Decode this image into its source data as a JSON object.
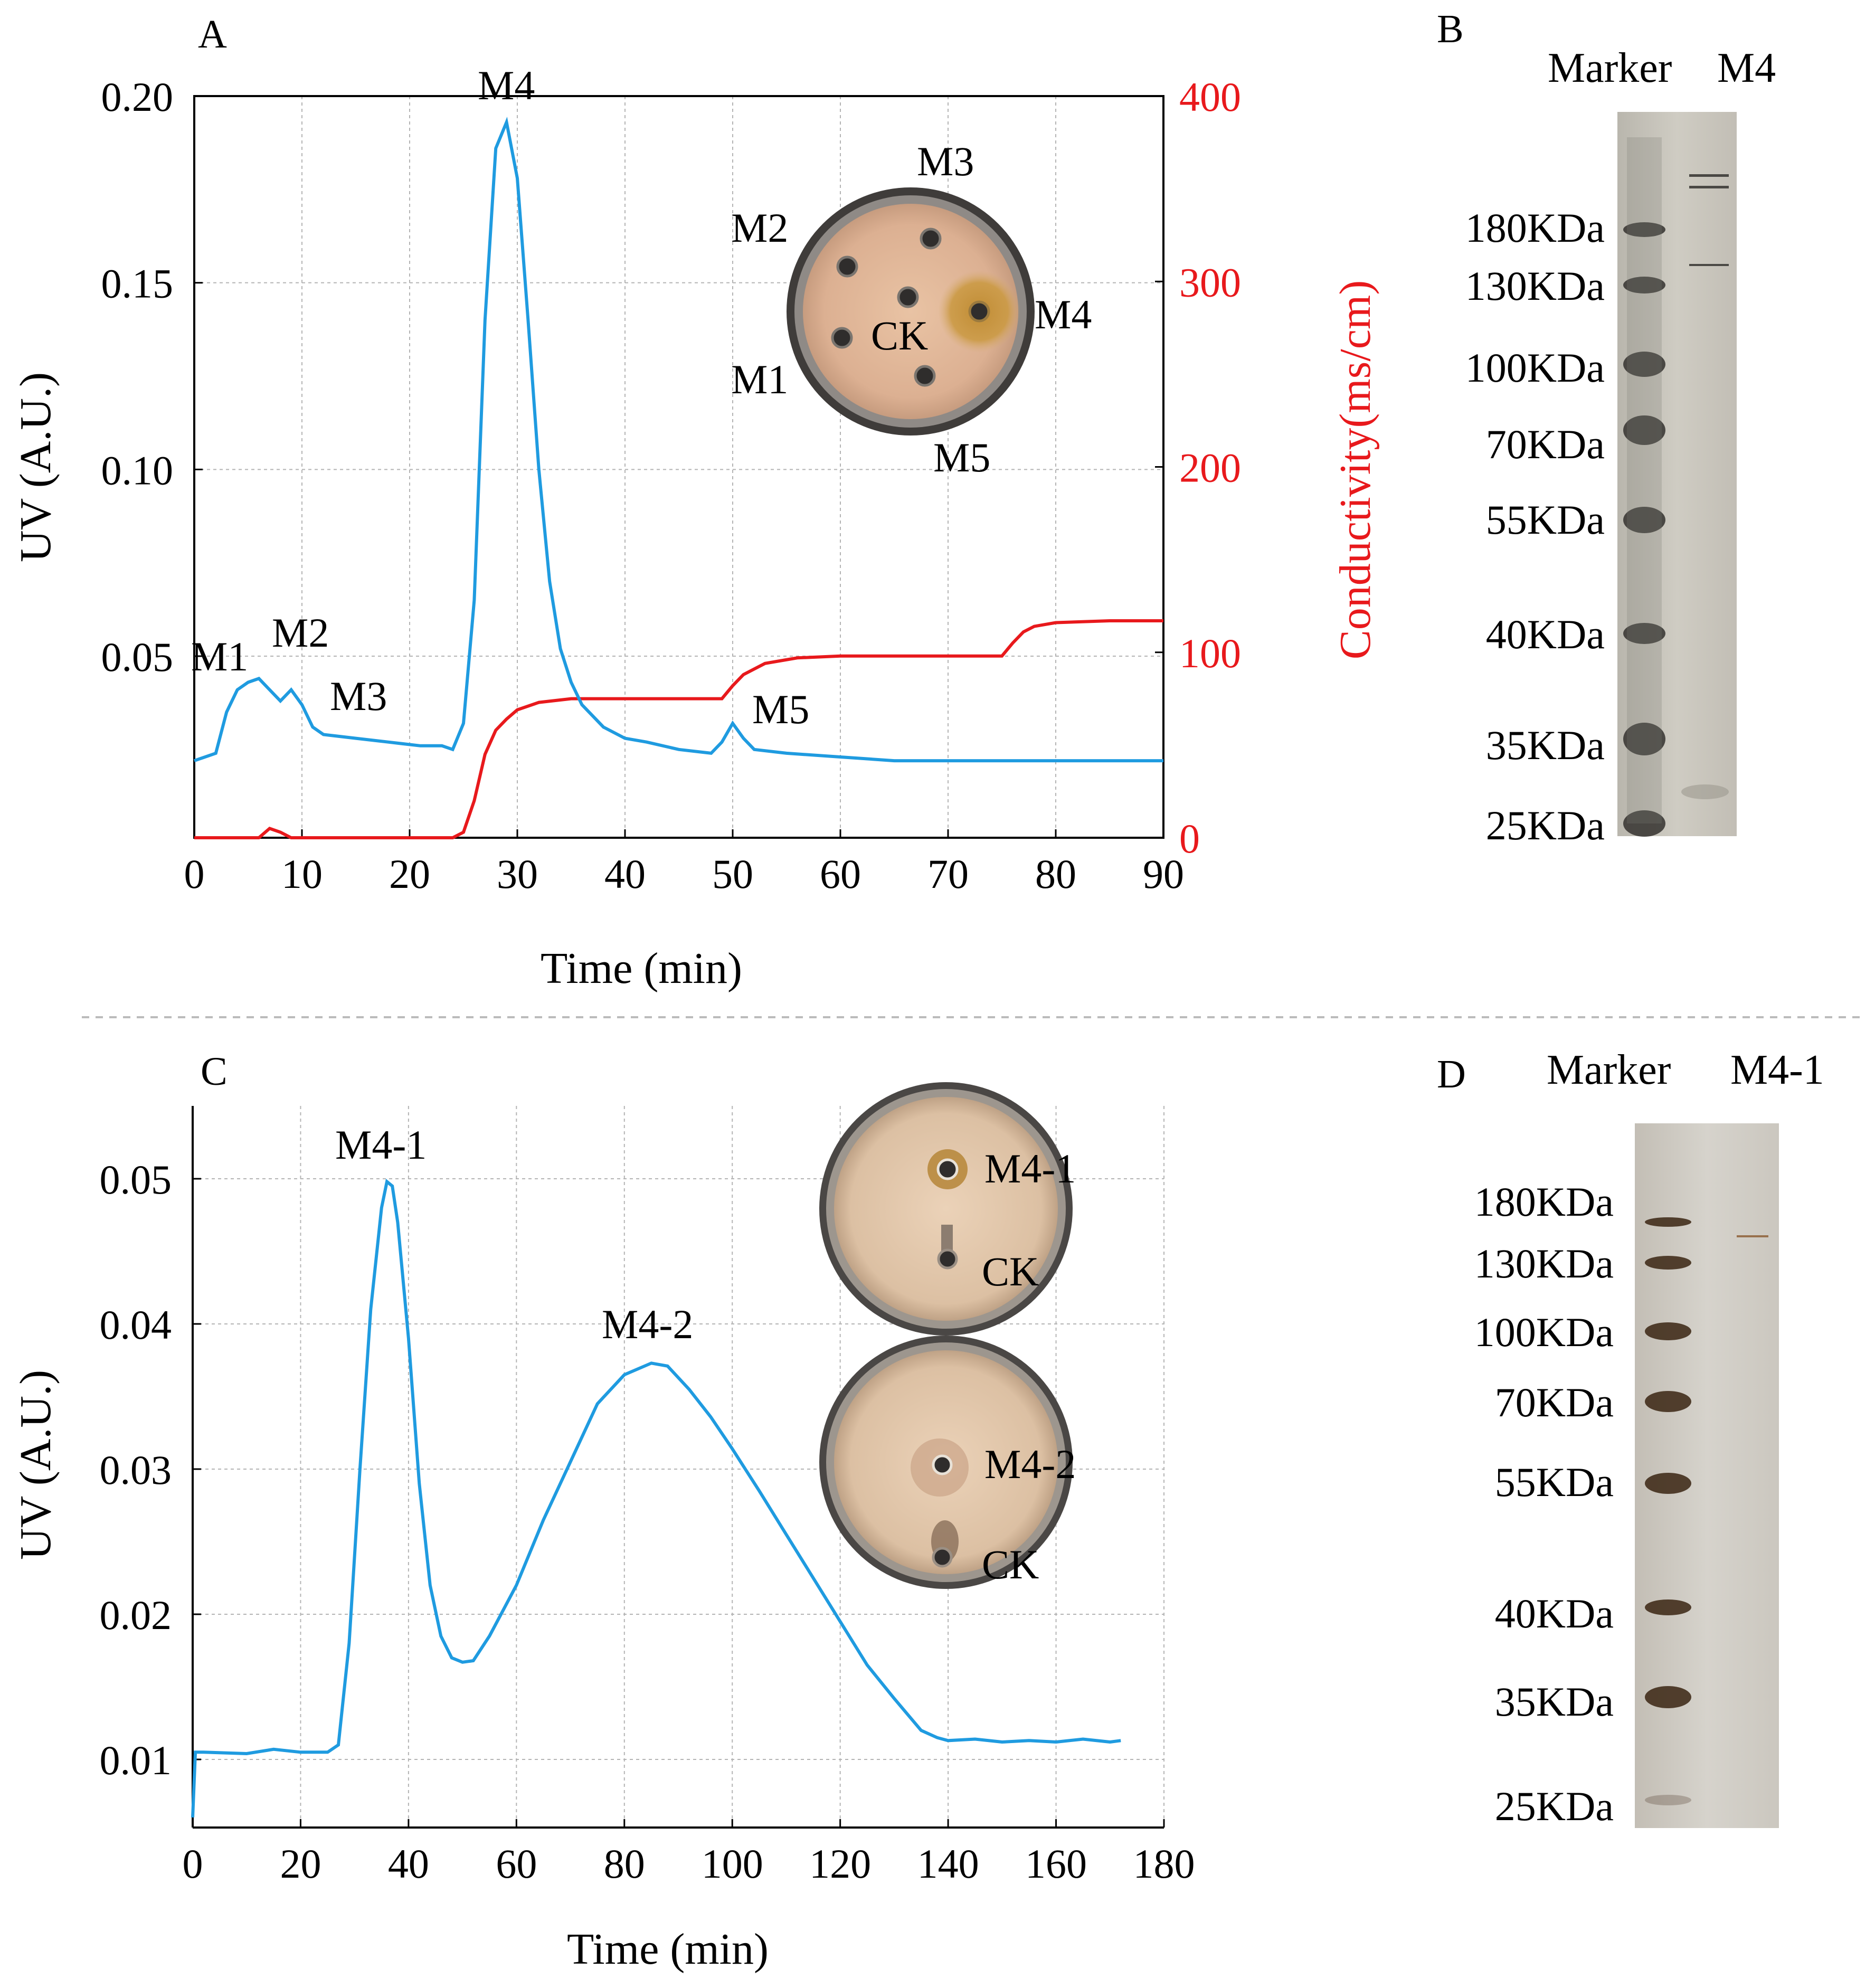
{
  "colors": {
    "uv": "#1f9be0",
    "conductivity": "#e8191c",
    "grid": "#b4b4b4",
    "axis": "#000000",
    "plate_agar": "#e0b99c",
    "plate_rim": "#4d4a48",
    "halo": "#c9902f",
    "marker_band_b": "#3c3a36",
    "marker_band_d": "#3a2412",
    "gel_b_bg": "#c8c5bc",
    "gel_d_bg": "#cfcbc4"
  },
  "panel_a": {
    "label": "A",
    "xlabel": "Time (min)",
    "ylabel_left": "UV (A.U.)",
    "ylabel_right": "Conductivity(ms/cm)",
    "peak_labels": [
      "M1",
      "M2",
      "M3",
      "M4",
      "M5"
    ],
    "plate_labels": [
      "M1",
      "M2",
      "M3",
      "M4",
      "M5",
      "CK"
    ]
  },
  "panel_b": {
    "label": "B",
    "lane_labels": [
      "Marker",
      "M4"
    ],
    "bands": [
      "180KDa",
      "130KDa",
      "100KDa",
      "70KDa",
      "55KDa",
      "40KDa",
      "35KDa",
      "25KDa"
    ]
  },
  "panel_c": {
    "label": "C",
    "xlabel": "Time (min)",
    "ylabel_left": "UV (A.U.)",
    "peak_labels": [
      "M4-1",
      "M4-2"
    ],
    "plate1_labels": [
      "M4-1",
      "CK"
    ],
    "plate2_labels": [
      "M4-2",
      "CK"
    ]
  },
  "panel_d": {
    "label": "D",
    "lane_labels": [
      "Marker",
      "M4-1"
    ],
    "bands": [
      "180KDa",
      "130KDa",
      "100KDa",
      "70KDa",
      "55KDa",
      "40KDa",
      "35KDa",
      "25KDa"
    ]
  },
  "chart_data": [
    {
      "id": "A",
      "type": "line",
      "title": "",
      "xlabel": "Time (min)",
      "ylabel": "UV (A.U.)",
      "y2label": "Conductivity(ms/cm)",
      "xlim": [
        0,
        90
      ],
      "ylim": [
        0,
        0.2
      ],
      "y2lim": [
        0,
        400
      ],
      "xticks": [
        0,
        10,
        20,
        30,
        40,
        50,
        60,
        70,
        80,
        90
      ],
      "yticks": [
        0.05,
        0.1,
        0.15,
        0.2
      ],
      "ytick_labels": [
        "0.05",
        "0.10",
        "0.15",
        "0.20"
      ],
      "y2ticks": [
        0,
        100,
        200,
        300,
        400
      ],
      "grid": true,
      "series": [
        {
          "name": "UV",
          "axis": "left",
          "x": [
            0,
            2,
            3,
            4,
            5,
            6,
            7,
            8,
            9,
            10,
            11,
            12,
            15,
            18,
            21,
            23,
            24,
            25,
            26,
            27,
            28,
            29,
            30,
            31,
            32,
            33,
            34,
            35,
            36,
            38,
            40,
            42,
            45,
            48,
            49,
            50,
            51,
            52,
            55,
            60,
            65,
            70,
            75,
            80,
            85,
            90
          ],
          "values": [
            0.022,
            0.024,
            0.035,
            0.041,
            0.043,
            0.044,
            0.041,
            0.038,
            0.041,
            0.037,
            0.031,
            0.029,
            0.028,
            0.027,
            0.026,
            0.026,
            0.025,
            0.032,
            0.065,
            0.14,
            0.186,
            0.193,
            0.178,
            0.14,
            0.1,
            0.07,
            0.052,
            0.043,
            0.037,
            0.031,
            0.028,
            0.027,
            0.025,
            0.024,
            0.027,
            0.032,
            0.028,
            0.025,
            0.024,
            0.023,
            0.022,
            0.022,
            0.022,
            0.022,
            0.022,
            0.022
          ]
        },
        {
          "name": "Conductivity",
          "axis": "right",
          "x": [
            0,
            6,
            7,
            8,
            9,
            24,
            25,
            26,
            27,
            28,
            29,
            30,
            32,
            35,
            49,
            50,
            51,
            53,
            56,
            60,
            75,
            76,
            77,
            78,
            80,
            85,
            90
          ],
          "values": [
            0,
            0,
            5,
            3,
            0,
            0,
            3,
            20,
            45,
            58,
            64,
            69,
            73,
            75,
            75,
            82,
            88,
            94,
            97,
            98,
            98,
            105,
            111,
            114,
            116,
            117,
            117
          ]
        }
      ],
      "annotations": [
        "M1",
        "M2",
        "M3",
        "M4",
        "M5"
      ]
    },
    {
      "id": "C",
      "type": "line",
      "title": "",
      "xlabel": "Time (min)",
      "ylabel": "UV (A.U.)",
      "xlim": [
        0,
        180
      ],
      "ylim": [
        0.005,
        0.055
      ],
      "xticks": [
        0,
        20,
        40,
        60,
        80,
        100,
        120,
        140,
        160,
        180
      ],
      "yticks": [
        0.01,
        0.02,
        0.03,
        0.04,
        0.05
      ],
      "ytick_labels": [
        "0.01",
        "0.02",
        "0.03",
        "0.04",
        "0.05"
      ],
      "grid": true,
      "series": [
        {
          "name": "UV",
          "x": [
            0,
            0.5,
            2,
            10,
            15,
            20,
            25,
            27,
            29,
            31,
            33,
            35,
            36,
            37,
            38,
            40,
            42,
            44,
            46,
            48,
            50,
            52,
            55,
            60,
            65,
            70,
            75,
            80,
            85,
            88,
            92,
            96,
            100,
            105,
            110,
            115,
            120,
            125,
            130,
            135,
            138,
            140,
            145,
            150,
            155,
            160,
            165,
            170,
            172
          ],
          "values": [
            0.006,
            0.0105,
            0.0105,
            0.0104,
            0.0107,
            0.0105,
            0.0105,
            0.011,
            0.018,
            0.03,
            0.041,
            0.048,
            0.0498,
            0.0495,
            0.047,
            0.039,
            0.029,
            0.022,
            0.0185,
            0.017,
            0.0167,
            0.0168,
            0.0185,
            0.022,
            0.0265,
            0.0305,
            0.0345,
            0.0365,
            0.0373,
            0.0371,
            0.0355,
            0.0336,
            0.0314,
            0.0285,
            0.0255,
            0.0225,
            0.0195,
            0.0165,
            0.0142,
            0.012,
            0.0115,
            0.0113,
            0.0114,
            0.0112,
            0.0113,
            0.0112,
            0.0114,
            0.0112,
            0.0113
          ]
        }
      ],
      "annotations": [
        "M4-1",
        "M4-2"
      ]
    }
  ]
}
